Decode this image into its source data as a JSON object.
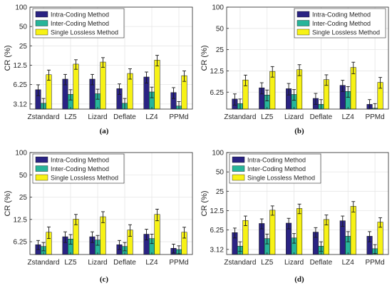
{
  "colors": {
    "intra": "#2a2383",
    "inter": "#27b59a",
    "single": "#f7f215",
    "error": "#1a1a1a",
    "grid": "#e6e6e6",
    "axis": "#262626",
    "plot_bg": "#ffffff"
  },
  "chart_data": [
    {
      "type": "bar",
      "caption": "(a)",
      "categories": [
        "Zstandard",
        "LZ5",
        "Lizard",
        "Deflate",
        "LZ4",
        "PPMd"
      ],
      "ylabel": "CR (%)",
      "yscale": "log",
      "ylim": [
        2.6,
        100
      ],
      "yticks": [
        3.12,
        6.25,
        12.5,
        25,
        50,
        100
      ],
      "ytick_labels": [
        "3.12",
        "6.25",
        "12.5",
        "25",
        "50",
        "100"
      ],
      "grid": true,
      "legend_position": "top-left",
      "series": [
        {
          "name": "Intra-Coding Method",
          "values": [
            5.2,
            7.6,
            7.6,
            5.4,
            8.2,
            4.7
          ],
          "errors": [
            1.0,
            1.4,
            1.4,
            1.0,
            1.6,
            0.9
          ]
        },
        {
          "name": "Inter-Coding Method",
          "values": [
            3.2,
            4.4,
            4.5,
            3.2,
            4.8,
            2.9
          ],
          "errors": [
            0.6,
            0.8,
            0.8,
            0.6,
            0.9,
            0.5
          ]
        },
        {
          "name": "Single Lossless Method",
          "values": [
            8.9,
            13.0,
            14.0,
            9.3,
            15.0,
            8.6
          ],
          "errors": [
            1.6,
            2.2,
            2.4,
            1.7,
            2.8,
            1.6
          ]
        }
      ]
    },
    {
      "type": "bar",
      "caption": "(b)",
      "categories": [
        "Zstandard",
        "LZ5",
        "Lizard",
        "Deflate",
        "LZ4",
        "PPMd"
      ],
      "ylabel": "CR (%)",
      "yscale": "log",
      "ylim": [
        3.6,
        100
      ],
      "yticks": [
        6.25,
        12.5,
        25,
        50,
        100
      ],
      "ytick_labels": [
        "6.25",
        "12.5",
        "25",
        "50",
        "100"
      ],
      "grid": true,
      "legend_position": "top-right",
      "series": [
        {
          "name": "Intra-Coding Method",
          "values": [
            5.0,
            7.2,
            7.0,
            5.1,
            7.8,
            4.2
          ],
          "errors": [
            0.9,
            1.3,
            1.3,
            0.9,
            1.4,
            0.7
          ]
        },
        {
          "name": "Inter-Coding Method",
          "values": [
            4.3,
            5.7,
            5.8,
            4.2,
            6.4,
            3.7
          ],
          "errors": [
            0.7,
            1.0,
            1.0,
            0.7,
            1.1,
            0.6
          ]
        },
        {
          "name": "Single Lossless Method",
          "values": [
            9.3,
            12.3,
            13.0,
            9.4,
            14.0,
            8.6
          ],
          "errors": [
            1.6,
            2.1,
            2.3,
            1.6,
            2.6,
            1.5
          ]
        }
      ]
    },
    {
      "type": "bar",
      "caption": "(c)",
      "categories": [
        "Zstandard",
        "LZ5",
        "Lizard",
        "Deflate",
        "LZ4",
        "PPMd"
      ],
      "ylabel": "CR (%)",
      "yscale": "log",
      "ylim": [
        4.2,
        100
      ],
      "yticks": [
        6.25,
        12.5,
        25,
        50,
        100
      ],
      "ytick_labels": [
        "6.25",
        "12.5",
        "25",
        "50",
        "100"
      ],
      "grid": true,
      "legend_position": "top-left",
      "series": [
        {
          "name": "Intra-Coding Method",
          "values": [
            5.7,
            7.3,
            7.3,
            5.7,
            7.9,
            5.1
          ],
          "errors": [
            0.8,
            1.2,
            1.2,
            0.8,
            1.3,
            0.7
          ]
        },
        {
          "name": "Inter-Coding Method",
          "values": [
            5.4,
            6.8,
            6.6,
            5.4,
            6.9,
            4.9
          ],
          "errors": [
            0.7,
            1.0,
            1.0,
            0.7,
            1.0,
            0.6
          ]
        },
        {
          "name": "Single Lossless Method",
          "values": [
            8.4,
            12.6,
            13.6,
            9.0,
            14.6,
            8.4
          ],
          "errors": [
            1.5,
            2.0,
            2.3,
            1.6,
            2.6,
            1.4
          ]
        }
      ]
    },
    {
      "type": "bar",
      "caption": "(d)",
      "categories": [
        "Zstandard",
        "LZ5",
        "Lizard",
        "Deflate",
        "LZ4",
        "PPMd"
      ],
      "ylabel": "CR (%)",
      "yscale": "log",
      "ylim": [
        2.6,
        100
      ],
      "yticks": [
        3.12,
        6.25,
        12.5,
        25,
        50,
        100
      ],
      "ytick_labels": [
        "3.12",
        "6.25",
        "12.5",
        "25",
        "50",
        "100"
      ],
      "grid": true,
      "legend_position": "top-left",
      "series": [
        {
          "name": "Intra-Coding Method",
          "values": [
            5.7,
            7.9,
            8.0,
            5.8,
            8.7,
            5.0
          ],
          "errors": [
            1.0,
            1.4,
            1.5,
            1.0,
            1.6,
            0.9
          ]
        },
        {
          "name": "Inter-Coding Method",
          "values": [
            3.5,
            4.6,
            4.7,
            3.5,
            5.0,
            3.2
          ],
          "errors": [
            0.6,
            0.8,
            0.8,
            0.6,
            0.9,
            0.5
          ]
        },
        {
          "name": "Single Lossless Method",
          "values": [
            8.8,
            12.7,
            13.5,
            9.1,
            14.6,
            8.3
          ],
          "errors": [
            1.5,
            2.1,
            2.3,
            1.6,
            2.7,
            1.4
          ]
        }
      ]
    }
  ]
}
